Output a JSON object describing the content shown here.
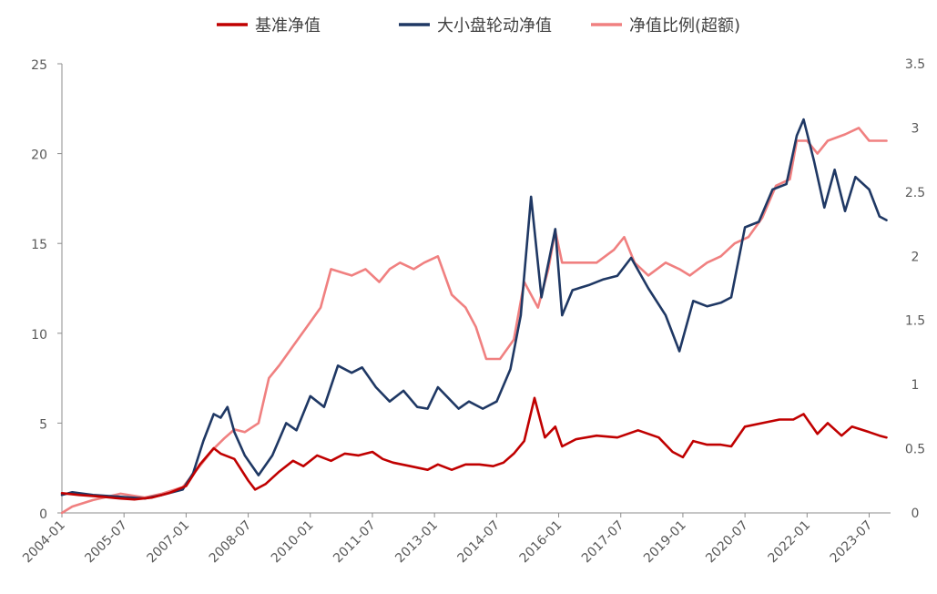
{
  "chart_data": {
    "type": "line",
    "title": "",
    "xlabel": "",
    "ylabel": "",
    "x_ticks": [
      "2004-01",
      "2005-07",
      "2007-01",
      "2008-07",
      "2010-01",
      "2011-07",
      "2013-01",
      "2014-07",
      "2016-01",
      "2017-07",
      "2019-01",
      "2020-07",
      "2022-01",
      "2023-07"
    ],
    "y_left": {
      "lim": [
        0,
        25
      ],
      "ticks": [
        "0",
        "5",
        "10",
        "15",
        "20",
        "25"
      ]
    },
    "y_right": {
      "lim": [
        0,
        3.5
      ],
      "ticks": [
        "0",
        "0.5",
        "1",
        "1.5",
        "2",
        "2.5",
        "3",
        "3.5"
      ]
    },
    "legend_position": "top-center",
    "grid": false,
    "series": [
      {
        "name": "基准净值",
        "axis": "left",
        "color": "#c00000",
        "points": [
          [
            "2004-01",
            1.1
          ],
          [
            "2004-06",
            1.0
          ],
          [
            "2005-01",
            0.9
          ],
          [
            "2005-06",
            0.8
          ],
          [
            "2005-10",
            0.75
          ],
          [
            "2006-03",
            0.85
          ],
          [
            "2006-08",
            1.1
          ],
          [
            "2007-01",
            1.5
          ],
          [
            "2007-05",
            2.7
          ],
          [
            "2007-09",
            3.6
          ],
          [
            "2007-11",
            3.3
          ],
          [
            "2008-03",
            3.0
          ],
          [
            "2008-07",
            1.8
          ],
          [
            "2008-09",
            1.3
          ],
          [
            "2008-12",
            1.6
          ],
          [
            "2009-04",
            2.3
          ],
          [
            "2009-08",
            2.9
          ],
          [
            "2009-11",
            2.6
          ],
          [
            "2010-03",
            3.2
          ],
          [
            "2010-07",
            2.9
          ],
          [
            "2010-11",
            3.3
          ],
          [
            "2011-03",
            3.2
          ],
          [
            "2011-07",
            3.4
          ],
          [
            "2011-10",
            3.0
          ],
          [
            "2012-01",
            2.8
          ],
          [
            "2012-06",
            2.6
          ],
          [
            "2012-11",
            2.4
          ],
          [
            "2013-02",
            2.7
          ],
          [
            "2013-06",
            2.4
          ],
          [
            "2013-10",
            2.7
          ],
          [
            "2014-02",
            2.7
          ],
          [
            "2014-06",
            2.6
          ],
          [
            "2014-09",
            2.8
          ],
          [
            "2014-12",
            3.3
          ],
          [
            "2015-03",
            4.0
          ],
          [
            "2015-06",
            6.4
          ],
          [
            "2015-09",
            4.2
          ],
          [
            "2015-12",
            4.8
          ],
          [
            "2016-02",
            3.7
          ],
          [
            "2016-06",
            4.1
          ],
          [
            "2016-12",
            4.3
          ],
          [
            "2017-06",
            4.2
          ],
          [
            "2017-12",
            4.6
          ],
          [
            "2018-06",
            4.2
          ],
          [
            "2018-10",
            3.4
          ],
          [
            "2019-01",
            3.1
          ],
          [
            "2019-04",
            4.0
          ],
          [
            "2019-08",
            3.8
          ],
          [
            "2019-12",
            3.8
          ],
          [
            "2020-03",
            3.7
          ],
          [
            "2020-07",
            4.8
          ],
          [
            "2020-12",
            5.0
          ],
          [
            "2021-05",
            5.2
          ],
          [
            "2021-09",
            5.2
          ],
          [
            "2021-12",
            5.5
          ],
          [
            "2022-04",
            4.4
          ],
          [
            "2022-07",
            5.0
          ],
          [
            "2022-11",
            4.3
          ],
          [
            "2023-02",
            4.8
          ],
          [
            "2023-07",
            4.5
          ],
          [
            "2023-10",
            4.3
          ],
          [
            "2023-12",
            4.2
          ]
        ]
      },
      {
        "name": "大小盘轮动净值",
        "axis": "left",
        "color": "#1f3864",
        "points": [
          [
            "2004-01",
            1.0
          ],
          [
            "2004-04",
            1.15
          ],
          [
            "2004-10",
            1.0
          ],
          [
            "2005-06",
            0.9
          ],
          [
            "2006-01",
            0.8
          ],
          [
            "2006-06",
            1.0
          ],
          [
            "2006-12",
            1.3
          ],
          [
            "2007-03",
            2.2
          ],
          [
            "2007-06",
            4.0
          ],
          [
            "2007-09",
            5.5
          ],
          [
            "2007-11",
            5.3
          ],
          [
            "2008-01",
            5.9
          ],
          [
            "2008-03",
            4.5
          ],
          [
            "2008-06",
            3.2
          ],
          [
            "2008-10",
            2.1
          ],
          [
            "2009-02",
            3.2
          ],
          [
            "2009-06",
            5.0
          ],
          [
            "2009-09",
            4.6
          ],
          [
            "2010-01",
            6.5
          ],
          [
            "2010-05",
            5.9
          ],
          [
            "2010-09",
            8.2
          ],
          [
            "2011-01",
            7.8
          ],
          [
            "2011-04",
            8.1
          ],
          [
            "2011-08",
            7.0
          ],
          [
            "2011-12",
            6.2
          ],
          [
            "2012-04",
            6.8
          ],
          [
            "2012-08",
            5.9
          ],
          [
            "2012-11",
            5.8
          ],
          [
            "2013-02",
            7.0
          ],
          [
            "2013-05",
            6.4
          ],
          [
            "2013-08",
            5.8
          ],
          [
            "2013-11",
            6.2
          ],
          [
            "2014-03",
            5.8
          ],
          [
            "2014-07",
            6.2
          ],
          [
            "2014-11",
            8.0
          ],
          [
            "2015-02",
            11.0
          ],
          [
            "2015-05",
            17.6
          ],
          [
            "2015-08",
            12.0
          ],
          [
            "2015-12",
            15.8
          ],
          [
            "2016-02",
            11.0
          ],
          [
            "2016-05",
            12.4
          ],
          [
            "2016-10",
            12.7
          ],
          [
            "2017-02",
            13.0
          ],
          [
            "2017-06",
            13.2
          ],
          [
            "2017-10",
            14.2
          ],
          [
            "2018-03",
            12.5
          ],
          [
            "2018-08",
            11.0
          ],
          [
            "2018-12",
            9.0
          ],
          [
            "2019-04",
            11.8
          ],
          [
            "2019-08",
            11.5
          ],
          [
            "2019-12",
            11.7
          ],
          [
            "2020-03",
            12.0
          ],
          [
            "2020-07",
            15.9
          ],
          [
            "2020-11",
            16.2
          ],
          [
            "2021-03",
            18.0
          ],
          [
            "2021-07",
            18.3
          ],
          [
            "2021-10",
            21.0
          ],
          [
            "2021-12",
            21.9
          ],
          [
            "2022-03",
            19.6
          ],
          [
            "2022-06",
            17.0
          ],
          [
            "2022-09",
            19.1
          ],
          [
            "2022-12",
            16.8
          ],
          [
            "2023-03",
            18.7
          ],
          [
            "2023-07",
            18.0
          ],
          [
            "2023-10",
            16.5
          ],
          [
            "2023-12",
            16.3
          ]
        ]
      },
      {
        "name": "净值比例(超额)",
        "axis": "right",
        "color": "#f08080",
        "points": [
          [
            "2004-01",
            0.0
          ],
          [
            "2004-04",
            0.05
          ],
          [
            "2004-10",
            0.1
          ],
          [
            "2005-06",
            0.15
          ],
          [
            "2006-01",
            0.12
          ],
          [
            "2006-06",
            0.15
          ],
          [
            "2006-12",
            0.2
          ],
          [
            "2007-03",
            0.3
          ],
          [
            "2007-06",
            0.4
          ],
          [
            "2007-09",
            0.5
          ],
          [
            "2007-12",
            0.58
          ],
          [
            "2008-03",
            0.65
          ],
          [
            "2008-06",
            0.63
          ],
          [
            "2008-10",
            0.7
          ],
          [
            "2009-01",
            1.05
          ],
          [
            "2009-04",
            1.15
          ],
          [
            "2009-08",
            1.3
          ],
          [
            "2009-12",
            1.45
          ],
          [
            "2010-04",
            1.6
          ],
          [
            "2010-07",
            1.9
          ],
          [
            "2011-01",
            1.85
          ],
          [
            "2011-05",
            1.9
          ],
          [
            "2011-09",
            1.8
          ],
          [
            "2011-12",
            1.9
          ],
          [
            "2012-03",
            1.95
          ],
          [
            "2012-07",
            1.9
          ],
          [
            "2012-10",
            1.95
          ],
          [
            "2013-02",
            2.0
          ],
          [
            "2013-06",
            1.7
          ],
          [
            "2013-10",
            1.6
          ],
          [
            "2014-01",
            1.45
          ],
          [
            "2014-04",
            1.2
          ],
          [
            "2014-08",
            1.2
          ],
          [
            "2014-12",
            1.35
          ],
          [
            "2015-03",
            1.8
          ],
          [
            "2015-07",
            1.6
          ],
          [
            "2015-10",
            1.9
          ],
          [
            "2015-12",
            2.2
          ],
          [
            "2016-02",
            1.95
          ],
          [
            "2016-06",
            1.95
          ],
          [
            "2016-12",
            1.95
          ],
          [
            "2017-05",
            2.05
          ],
          [
            "2017-08",
            2.15
          ],
          [
            "2017-11",
            1.95
          ],
          [
            "2018-03",
            1.85
          ],
          [
            "2018-08",
            1.95
          ],
          [
            "2018-12",
            1.9
          ],
          [
            "2019-03",
            1.85
          ],
          [
            "2019-08",
            1.95
          ],
          [
            "2019-12",
            2.0
          ],
          [
            "2020-04",
            2.1
          ],
          [
            "2020-08",
            2.15
          ],
          [
            "2020-12",
            2.3
          ],
          [
            "2021-04",
            2.55
          ],
          [
            "2021-08",
            2.6
          ],
          [
            "2021-10",
            2.9
          ],
          [
            "2022-01",
            2.9
          ],
          [
            "2022-04",
            2.8
          ],
          [
            "2022-07",
            2.9
          ],
          [
            "2022-12",
            2.95
          ],
          [
            "2023-04",
            3.0
          ],
          [
            "2023-07",
            2.9
          ],
          [
            "2023-10",
            2.9
          ],
          [
            "2023-12",
            2.9
          ]
        ]
      }
    ]
  }
}
